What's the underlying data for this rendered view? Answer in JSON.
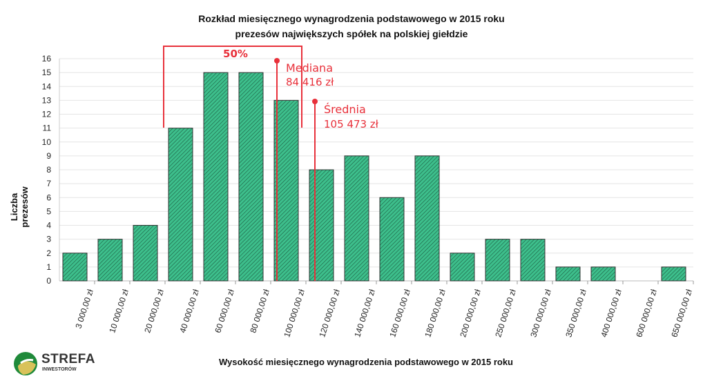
{
  "chart_data": {
    "type": "bar",
    "title": [
      "Rozkład miesięcznego wynagrodzenia podstawowego w 2015 roku",
      "prezesów największych spółek na polskiej giełdzie"
    ],
    "xlabel": "Wysokość miesięcznego wynagrodzenia podstawowego w 2015 roku",
    "ylabel": "Liczba prezesów",
    "ylim": [
      0,
      16
    ],
    "yticks": [
      0,
      1,
      2,
      3,
      4,
      5,
      6,
      7,
      8,
      9,
      10,
      11,
      12,
      13,
      14,
      15,
      16
    ],
    "grid": true,
    "tick_labels": [
      "3 000,00 zł",
      "10 000,00 zł",
      "20 000,00 zł",
      "40 000,00 zł",
      "60 000,00 zł",
      "80 000,00 zł",
      "100 000,00 zł",
      "120 000,00 zł",
      "140 000,00 zł",
      "160 000,00 zł",
      "180 000,00 zł",
      "200 000,00 zł",
      "250 000,00 zł",
      "300 000,00 zł",
      "350 000,00 zł",
      "400 000,00 zł",
      "600 000,00 zł",
      "650 000,00 zł"
    ],
    "values": [
      2,
      3,
      4,
      11,
      15,
      15,
      13,
      8,
      9,
      6,
      9,
      2,
      3,
      3,
      1,
      1,
      0,
      1
    ],
    "bar_color": "#3dbf8c",
    "annotations": {
      "bracket_label": "50%",
      "median_label": "Mediana",
      "median_value": "84 416 zł",
      "mean_label": "Średnia",
      "mean_value": "105 473 zł",
      "color": "#e8303a"
    }
  },
  "logo": {
    "name": "STREFA",
    "sub": "INWESTORÓW"
  }
}
